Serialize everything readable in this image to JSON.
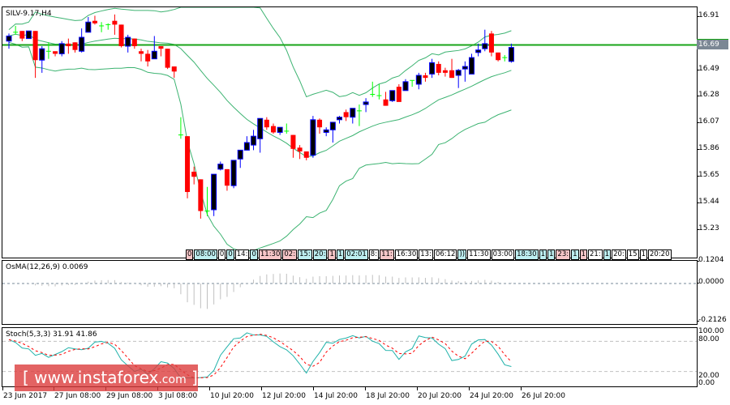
{
  "main": {
    "title": "SILV-9.17,H4",
    "current_price": "16.69",
    "price_axis": [
      "16.91",
      "16.69",
      "16.49",
      "16.28",
      "16.07",
      "15.86",
      "15.65",
      "15.44",
      "15.23"
    ],
    "colors": {
      "bull_body": "#000000",
      "bull_border": "#0000ff",
      "bear": "#ff0000",
      "doji": "#00ff00",
      "bands": "#3cb371",
      "level": "#18a518"
    }
  },
  "sessions": [
    {
      "t": "0",
      "c": "red"
    },
    {
      "t": "08:00",
      "c": "cyan"
    },
    {
      "t": "0",
      "c": "white"
    },
    {
      "t": "0",
      "c": "cyan"
    },
    {
      "t": "14:",
      "c": "white"
    },
    {
      "t": "0",
      "c": "cyan"
    },
    {
      "t": "11:30",
      "c": "red"
    },
    {
      "t": "02:",
      "c": "red"
    },
    {
      "t": "15:",
      "c": "cyan"
    },
    {
      "t": "20:",
      "c": "cyan"
    },
    {
      "t": "1",
      "c": "red"
    },
    {
      "t": "1",
      "c": "cyan"
    },
    {
      "t": "02:01",
      "c": "cyan"
    },
    {
      "t": "8:",
      "c": "white"
    },
    {
      "t": "11:",
      "c": "red"
    },
    {
      "t": "16:30",
      "c": "white"
    },
    {
      "t": "13:",
      "c": "white"
    },
    {
      "t": "06:12",
      "c": "white"
    },
    {
      "t": "))",
      "c": "cyan"
    },
    {
      "t": "11:30",
      "c": "white"
    },
    {
      "t": "03:00",
      "c": "white"
    },
    {
      "t": "18:30",
      "c": "cyan"
    },
    {
      "t": "1",
      "c": "cyan"
    },
    {
      "t": "1",
      "c": "cyan"
    },
    {
      "t": "23:",
      "c": "red"
    },
    {
      "t": "1",
      "c": "cyan"
    },
    {
      "t": "1",
      "c": "red"
    },
    {
      "t": "21:",
      "c": "white"
    },
    {
      "t": "1",
      "c": "cyan"
    },
    {
      "t": "20:",
      "c": "white"
    },
    {
      "t": "15",
      "c": "white"
    },
    {
      "t": "1",
      "c": "white"
    },
    {
      "t": "20:20",
      "c": "white"
    }
  ],
  "osma": {
    "label": "OsMA(12,26,9) 0.0069",
    "axis": [
      "0.1204",
      "0.0000",
      "-0.2126"
    ]
  },
  "stoch": {
    "label": "Stoch(5,3,3) 31.91 41.86",
    "axis": [
      "100.00",
      "80.00",
      "20.00",
      "0.00"
    ]
  },
  "time_axis": [
    "23 Jun 2017",
    "27 Jun 08:00",
    "29 Jun 08:00",
    "3 Jul 08:00",
    "10 Jul 20:00",
    "12 Jul 20:00",
    "14 Jul 20:00",
    "18 Jul 20:00",
    "20 Jul 20:00",
    "24 Jul 20:00",
    "26 Jul 20:00"
  ],
  "watermark": {
    "main": "[  www.instaforex",
    "com": ".com",
    "close": " ]"
  },
  "chart_data": [
    {
      "type": "candlestick",
      "title": "SILV-9.17,H4",
      "ylim": [
        15.05,
        17.0
      ],
      "y_ticks": [
        16.91,
        16.69,
        16.49,
        16.28,
        16.07,
        15.86,
        15.65,
        15.44,
        15.23
      ],
      "horizontal_level": 16.69,
      "ohlc": [
        [
          16.72,
          16.78,
          16.66,
          16.76
        ],
        [
          16.78,
          16.84,
          16.77,
          16.79
        ],
        [
          16.8,
          16.8,
          16.72,
          16.74
        ],
        [
          16.74,
          16.8,
          16.74,
          16.8
        ],
        [
          16.8,
          16.8,
          16.43,
          16.57
        ],
        [
          16.57,
          16.68,
          16.47,
          16.66
        ],
        [
          16.64,
          16.71,
          16.58,
          16.63
        ],
        [
          16.64,
          16.64,
          16.6,
          16.62
        ],
        [
          16.62,
          16.72,
          16.6,
          16.7
        ],
        [
          16.7,
          16.74,
          16.62,
          16.68
        ],
        [
          16.71,
          16.71,
          16.63,
          16.65
        ],
        [
          16.64,
          16.82,
          16.63,
          16.75
        ],
        [
          16.79,
          16.91,
          16.79,
          16.87
        ],
        [
          16.88,
          16.92,
          16.85,
          16.86
        ],
        [
          16.84,
          16.87,
          16.79,
          16.84
        ],
        [
          16.84,
          16.86,
          16.81,
          16.85
        ],
        [
          16.88,
          16.93,
          16.77,
          16.85
        ],
        [
          16.85,
          16.85,
          16.67,
          16.68
        ],
        [
          16.68,
          16.77,
          16.63,
          16.75
        ],
        [
          16.74,
          16.74,
          16.66,
          16.68
        ],
        [
          16.64,
          16.66,
          16.56,
          16.62
        ],
        [
          16.62,
          16.65,
          16.52,
          16.56
        ],
        [
          16.58,
          16.76,
          16.58,
          16.64
        ],
        [
          16.68,
          16.68,
          16.6,
          16.66
        ],
        [
          16.66,
          16.66,
          16.5,
          16.51
        ],
        [
          16.52,
          16.52,
          16.43,
          16.48
        ],
        [
          15.98,
          16.12,
          15.95,
          15.97
        ],
        [
          15.97,
          15.97,
          15.48,
          15.53
        ],
        [
          15.69,
          15.73,
          15.59,
          15.65
        ],
        [
          15.63,
          15.63,
          15.32,
          15.38
        ],
        [
          15.38,
          15.57,
          15.34,
          15.38
        ],
        [
          15.39,
          15.67,
          15.34,
          15.67
        ],
        [
          15.71,
          15.77,
          15.7,
          15.75
        ],
        [
          15.71,
          15.71,
          15.54,
          15.58
        ],
        [
          15.58,
          15.74,
          15.56,
          15.78
        ],
        [
          15.79,
          15.86,
          15.72,
          15.86
        ],
        [
          15.86,
          15.97,
          15.86,
          15.92
        ],
        [
          15.9,
          16.02,
          15.86,
          15.97
        ],
        [
          15.95,
          16.11,
          15.84,
          16.11
        ],
        [
          16.1,
          16.12,
          16.02,
          16.04
        ],
        [
          16.05,
          16.07,
          15.99,
          16.0
        ],
        [
          16.0,
          16.04,
          15.98,
          16.04
        ],
        [
          16.0,
          16.07,
          15.99,
          16.01
        ],
        [
          15.98,
          15.98,
          15.8,
          15.87
        ],
        [
          15.88,
          15.9,
          15.79,
          15.85
        ],
        [
          15.85,
          15.85,
          15.78,
          15.8
        ],
        [
          15.82,
          16.13,
          15.8,
          16.1
        ],
        [
          16.1,
          16.11,
          15.99,
          16.04
        ],
        [
          16.0,
          16.04,
          15.97,
          16.02
        ],
        [
          16.02,
          16.08,
          15.92,
          16.08
        ],
        [
          16.1,
          16.13,
          16.07,
          16.12
        ],
        [
          16.16,
          16.18,
          16.09,
          16.12
        ],
        [
          16.12,
          16.19,
          16.07,
          16.19
        ],
        [
          16.17,
          16.22,
          16.05,
          16.17
        ],
        [
          16.22,
          16.27,
          16.16,
          16.24
        ],
        [
          16.29,
          16.4,
          16.28,
          16.3
        ],
        [
          16.28,
          16.38,
          16.26,
          16.29
        ],
        [
          16.26,
          16.32,
          16.21,
          16.21
        ],
        [
          16.25,
          16.33,
          16.24,
          16.33
        ],
        [
          16.36,
          16.38,
          16.26,
          16.24
        ],
        [
          16.33,
          16.42,
          16.33,
          16.4
        ],
        [
          16.41,
          16.41,
          16.36,
          16.4
        ],
        [
          16.38,
          16.47,
          16.34,
          16.45
        ],
        [
          16.45,
          16.47,
          16.4,
          16.43
        ],
        [
          16.46,
          16.58,
          16.43,
          16.55
        ],
        [
          16.54,
          16.56,
          16.45,
          16.47
        ],
        [
          16.49,
          16.51,
          16.44,
          16.47
        ],
        [
          16.49,
          16.58,
          16.43,
          16.43
        ],
        [
          16.45,
          16.5,
          16.35,
          16.49
        ],
        [
          16.5,
          16.56,
          16.4,
          16.52
        ],
        [
          16.46,
          16.62,
          16.46,
          16.59
        ],
        [
          16.63,
          16.7,
          16.6,
          16.65
        ],
        [
          16.66,
          16.81,
          16.64,
          16.7
        ],
        [
          16.78,
          16.8,
          16.6,
          16.63
        ],
        [
          16.63,
          16.63,
          16.56,
          16.57
        ],
        [
          16.59,
          16.61,
          16.56,
          16.59
        ],
        [
          16.56,
          16.7,
          16.55,
          16.67
        ]
      ],
      "bollinger": true
    },
    {
      "type": "bar",
      "title": "OsMA(12,26,9) 0.0069",
      "ylim": [
        -0.2126,
        0.1204
      ],
      "last_value": 0.0069
    },
    {
      "type": "line",
      "title": "Stoch(5,3,3) 31.91 41.86",
      "ylim": [
        0,
        100
      ],
      "levels": [
        80,
        20
      ],
      "series": [
        {
          "name": "%K",
          "color": "#20b2aa",
          "last": 31.91
        },
        {
          "name": "%D",
          "color": "#ff0000",
          "style": "dashed",
          "last": 41.86
        }
      ]
    }
  ]
}
